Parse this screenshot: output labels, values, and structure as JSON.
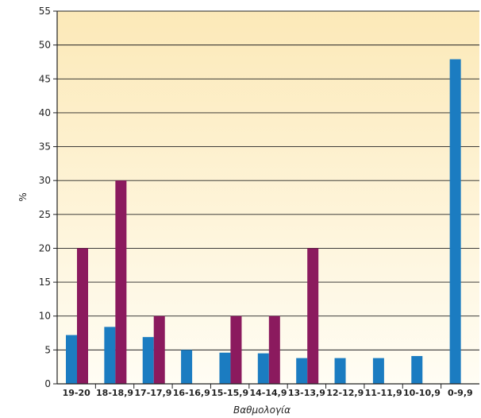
{
  "chart_data": {
    "type": "bar",
    "title": "",
    "xlabel": "Βαθμολογία",
    "ylabel": "%",
    "ylim": [
      0,
      55
    ],
    "yticks": [
      0,
      5,
      10,
      15,
      20,
      25,
      30,
      35,
      40,
      45,
      50,
      55
    ],
    "grid": true,
    "categories": [
      "19-20",
      "18-18,9",
      "17-17,9",
      "16-16,9",
      "15-15,9",
      "14-14,9",
      "13-13,9",
      "12-12,9",
      "11-11,9",
      "10-10,9",
      "0-9,9"
    ],
    "series": [
      {
        "color": "#1b7cc1",
        "values": [
          7.2,
          8.4,
          6.9,
          5.0,
          4.6,
          4.5,
          3.8,
          3.8,
          3.8,
          4.1,
          47.9
        ]
      },
      {
        "color": "#8b1a5e",
        "values": [
          20,
          30,
          10,
          0,
          10,
          10,
          20,
          0,
          0,
          0,
          0
        ]
      }
    ],
    "background": {
      "top": "#fce9b8",
      "bottom": "#fffdf4"
    }
  }
}
